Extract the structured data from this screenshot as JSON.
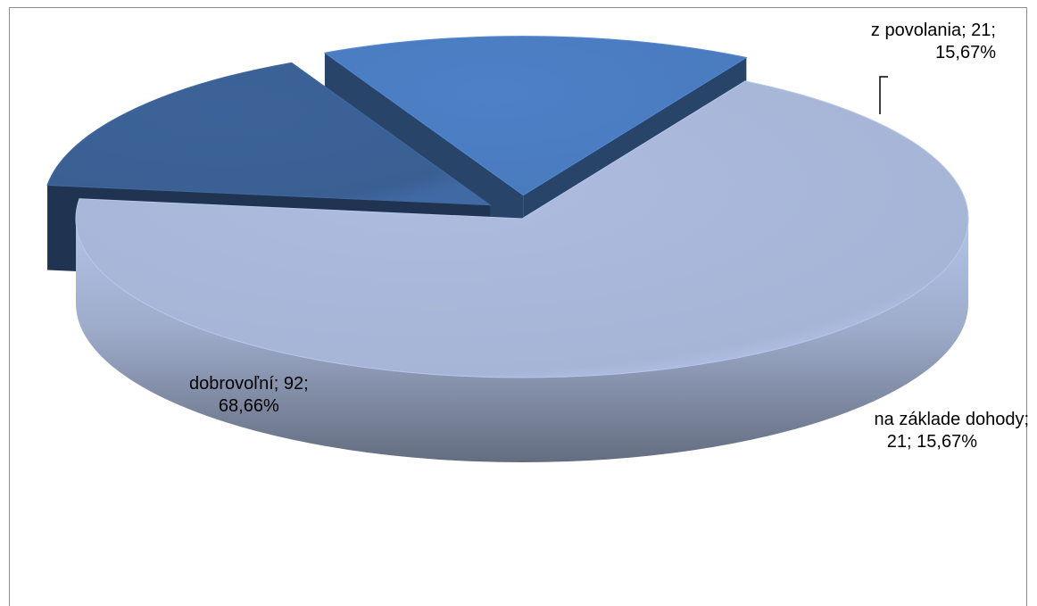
{
  "chart_data": {
    "type": "pie",
    "style": "3d-exploded",
    "categories": [
      "dobrovoľní",
      "z povolania",
      "na základe dohody"
    ],
    "values": [
      92,
      21,
      21
    ],
    "percentages": [
      "68,66%",
      "15,67%",
      "15,67%"
    ],
    "colors": [
      "#a6b5d6",
      "#3a5f93",
      "#4a7bbf"
    ],
    "labels": [
      {
        "line1": "dobrovoľní; 92;",
        "line2": "68,66%"
      },
      {
        "line1": "z povolania; 21;",
        "line2": "15,67%"
      },
      {
        "line1": "na základe dohody;",
        "line2": "21; 15,67%"
      }
    ],
    "legend": "none"
  }
}
